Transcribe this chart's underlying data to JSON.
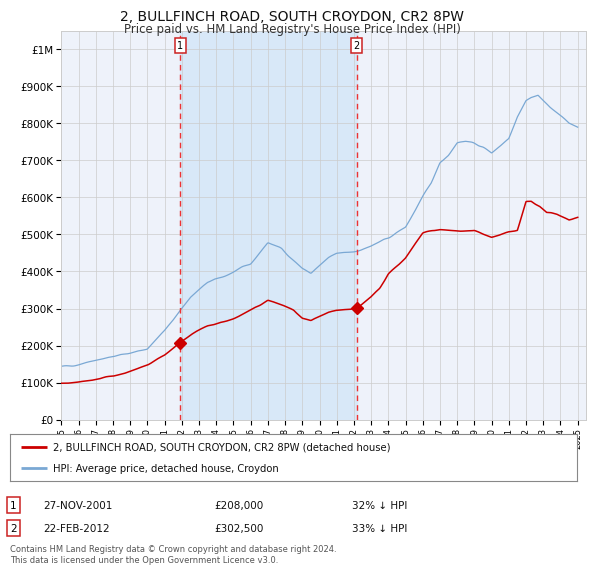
{
  "title": "2, BULLFINCH ROAD, SOUTH CROYDON, CR2 8PW",
  "subtitle": "Price paid vs. HM Land Registry's House Price Index (HPI)",
  "title_fontsize": 10,
  "subtitle_fontsize": 8.5,
  "background_color": "#ffffff",
  "plot_bg_color": "#eef2fa",
  "grid_color": "#cccccc",
  "red_line_color": "#cc0000",
  "blue_line_color": "#7aa8d4",
  "highlight_bg": "#d8e8f8",
  "dashed_line_color": "#ee3333",
  "legend_label_red": "2, BULLFINCH ROAD, SOUTH CROYDON, CR2 8PW (detached house)",
  "legend_label_blue": "HPI: Average price, detached house, Croydon",
  "annotation1_date": "27-NOV-2001",
  "annotation1_price": "£208,000",
  "annotation1_pct": "32% ↓ HPI",
  "annotation1_year": 2001.9,
  "annotation1_value": 208000,
  "annotation2_date": "22-FEB-2012",
  "annotation2_price": "£302,500",
  "annotation2_pct": "33% ↓ HPI",
  "annotation2_year": 2012.15,
  "annotation2_value": 302500,
  "footer": "Contains HM Land Registry data © Crown copyright and database right 2024.\nThis data is licensed under the Open Government Licence v3.0.",
  "ylim": [
    0,
    1050000
  ],
  "yticks": [
    0,
    100000,
    200000,
    300000,
    400000,
    500000,
    600000,
    700000,
    800000,
    900000,
    1000000
  ],
  "ytick_labels": [
    "£0",
    "£100K",
    "£200K",
    "£300K",
    "£400K",
    "£500K",
    "£600K",
    "£700K",
    "£800K",
    "£900K",
    "£1M"
  ],
  "xmin": 1995,
  "xmax": 2025.5
}
